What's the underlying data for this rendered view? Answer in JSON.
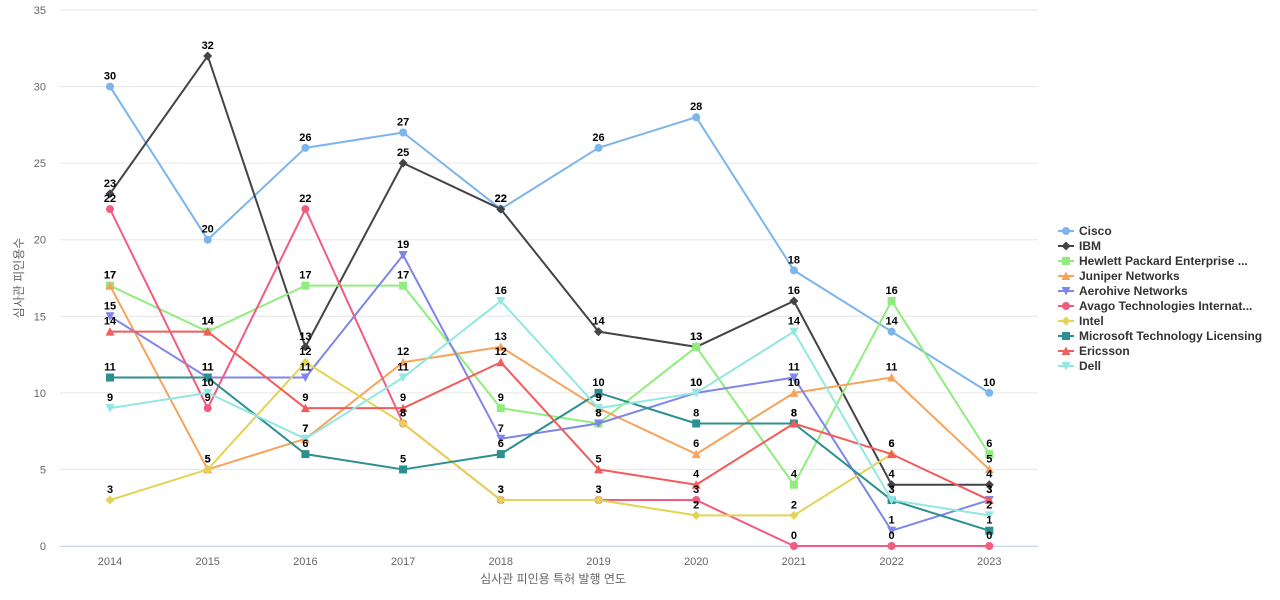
{
  "chart_data": {
    "type": "line",
    "title": "",
    "xlabel": "심사관 피인용 특허 발행 연도",
    "ylabel": "심사관 피인용수",
    "categories": [
      "2014",
      "2015",
      "2016",
      "2017",
      "2018",
      "2019",
      "2020",
      "2021",
      "2022",
      "2023"
    ],
    "ylim": [
      0,
      35
    ],
    "yticks": [
      0,
      5,
      10,
      15,
      20,
      25,
      30,
      35
    ],
    "grid": true,
    "legend_position": "right",
    "series": [
      {
        "name": "Cisco",
        "color": "#7cb5ec",
        "marker": "circle",
        "values": [
          30,
          20,
          26,
          27,
          22,
          26,
          28,
          18,
          14,
          10
        ]
      },
      {
        "name": "IBM",
        "color": "#434348",
        "marker": "diamond",
        "values": [
          23,
          32,
          13,
          25,
          22,
          14,
          13,
          16,
          4,
          4
        ]
      },
      {
        "name": "Hewlett Packard Enterprise ...",
        "color": "#90ed7d",
        "marker": "square",
        "values": [
          17,
          14,
          17,
          17,
          9,
          8,
          13,
          4,
          16,
          6
        ]
      },
      {
        "name": "Juniper Networks",
        "color": "#f7a35c",
        "marker": "triangle",
        "values": [
          17,
          5,
          7,
          12,
          13,
          9,
          6,
          10,
          11,
          5
        ]
      },
      {
        "name": "Aerohive Networks",
        "color": "#8085e9",
        "marker": "triangle-down",
        "values": [
          15,
          11,
          11,
          19,
          7,
          8,
          10,
          11,
          1,
          3
        ]
      },
      {
        "name": "Avago Technologies Internat...",
        "color": "#f15c80",
        "marker": "circle",
        "values": [
          22,
          9,
          22,
          8,
          3,
          3,
          3,
          0,
          0,
          0
        ]
      },
      {
        "name": "Intel",
        "color": "#e4d354",
        "marker": "diamond",
        "values": [
          3,
          5,
          12,
          8,
          3,
          3,
          2,
          2,
          6,
          null
        ]
      },
      {
        "name": "Microsoft Technology Licensing",
        "color": "#2b908f",
        "marker": "square",
        "values": [
          11,
          11,
          6,
          5,
          6,
          10,
          8,
          8,
          3,
          1
        ]
      },
      {
        "name": "Ericsson",
        "color": "#f45b5b",
        "marker": "triangle",
        "values": [
          14,
          14,
          9,
          9,
          12,
          5,
          4,
          8,
          6,
          3
        ]
      },
      {
        "name": "Dell",
        "color": "#91e8e1",
        "marker": "triangle-down",
        "values": [
          9,
          10,
          7,
          11,
          16,
          9,
          10,
          14,
          3,
          2
        ]
      }
    ]
  }
}
